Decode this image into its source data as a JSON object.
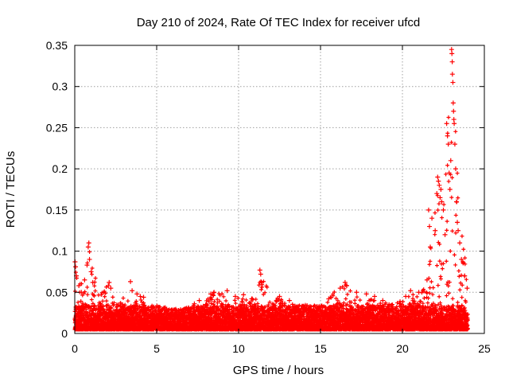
{
  "chart_data": {
    "type": "scatter",
    "title": "Day 210 of 2024, Rate Of TEC Index for receiver ufcd",
    "xlabel": "GPS time / hours",
    "ylabel": "ROTI / TECUs",
    "xlim": [
      0,
      25
    ],
    "ylim": [
      0,
      0.35
    ],
    "grid": true,
    "marker": "plus",
    "color": "#ff0000",
    "x_ticks": [
      0,
      5,
      10,
      15,
      20,
      25
    ],
    "x_tick_labels": [
      "0",
      "5",
      "10",
      "15",
      "20",
      "25"
    ],
    "y_ticks": [
      0,
      0.05,
      0.1,
      0.15,
      0.2,
      0.25,
      0.3,
      0.35
    ],
    "y_tick_labels": [
      "0",
      "0.05",
      "0.1",
      "0.15",
      "0.2",
      "0.25",
      "0.3",
      "0.35"
    ],
    "series": [
      {
        "name": "ROTI",
        "envelope_hours": [
          0,
          0.5,
          1,
          1.5,
          2,
          2.5,
          3,
          3.5,
          4,
          4.5,
          5,
          5.5,
          6,
          6.5,
          7,
          7.5,
          8,
          8.5,
          9,
          9.5,
          10,
          10.5,
          11,
          11.5,
          12,
          12.5,
          13,
          13.5,
          14,
          14.5,
          15,
          15.5,
          16,
          16.5,
          17,
          17.5,
          18,
          18.5,
          19,
          19.5,
          20,
          20.5,
          21,
          21.5,
          22,
          22.5,
          23,
          23.5,
          24
        ],
        "envelope_roti": [
          0.085,
          0.06,
          0.11,
          0.05,
          0.058,
          0.04,
          0.048,
          0.035,
          0.045,
          0.033,
          0.03,
          0.028,
          0.026,
          0.026,
          0.028,
          0.035,
          0.04,
          0.05,
          0.052,
          0.04,
          0.05,
          0.042,
          0.045,
          0.077,
          0.038,
          0.045,
          0.038,
          0.036,
          0.035,
          0.035,
          0.033,
          0.042,
          0.055,
          0.062,
          0.05,
          0.048,
          0.045,
          0.04,
          0.038,
          0.035,
          0.042,
          0.05,
          0.048,
          0.06,
          0.18,
          0.19,
          0.345,
          0.16,
          0.055
        ],
        "baseline_roti": 0.012,
        "points": [
          [
            0.02,
            0.087
          ],
          [
            0.05,
            0.081
          ],
          [
            0.1,
            0.07
          ],
          [
            0.25,
            0.058
          ],
          [
            0.4,
            0.05
          ],
          [
            0.6,
            0.065
          ],
          [
            0.75,
            0.083
          ],
          [
            0.82,
            0.105
          ],
          [
            0.86,
            0.11
          ],
          [
            0.9,
            0.09
          ],
          [
            1.0,
            0.075
          ],
          [
            1.1,
            0.062
          ],
          [
            2.05,
            0.058
          ],
          [
            2.1,
            0.062
          ],
          [
            2.2,
            0.055
          ],
          [
            3.4,
            0.063
          ],
          [
            3.5,
            0.052
          ],
          [
            3.8,
            0.048
          ],
          [
            4.0,
            0.045
          ],
          [
            4.2,
            0.044
          ],
          [
            7.3,
            0.036
          ],
          [
            7.6,
            0.04
          ],
          [
            8.3,
            0.048
          ],
          [
            8.5,
            0.05
          ],
          [
            9.3,
            0.052
          ],
          [
            9.8,
            0.045
          ],
          [
            10.3,
            0.047
          ],
          [
            10.8,
            0.042
          ],
          [
            11.3,
            0.077
          ],
          [
            11.35,
            0.072
          ],
          [
            11.4,
            0.062
          ],
          [
            12.5,
            0.045
          ],
          [
            13.1,
            0.04
          ],
          [
            15.5,
            0.042
          ],
          [
            16.2,
            0.055
          ],
          [
            16.5,
            0.062
          ],
          [
            16.6,
            0.058
          ],
          [
            17.2,
            0.05
          ],
          [
            17.8,
            0.048
          ],
          [
            18.3,
            0.045
          ],
          [
            18.8,
            0.04
          ],
          [
            20.2,
            0.045
          ],
          [
            20.5,
            0.052
          ],
          [
            21.0,
            0.05
          ],
          [
            21.5,
            0.065
          ],
          [
            21.6,
            0.15
          ],
          [
            21.65,
            0.13
          ],
          [
            21.7,
            0.105
          ],
          [
            21.8,
            0.14
          ],
          [
            22.0,
            0.125
          ],
          [
            22.1,
            0.17
          ],
          [
            22.15,
            0.19
          ],
          [
            22.2,
            0.185
          ],
          [
            22.25,
            0.18
          ],
          [
            22.3,
            0.165
          ],
          [
            22.35,
            0.175
          ],
          [
            22.4,
            0.16
          ],
          [
            22.5,
            0.15
          ],
          [
            22.6,
            0.12
          ],
          [
            22.7,
            0.255
          ],
          [
            22.75,
            0.24
          ],
          [
            22.8,
            0.23
          ],
          [
            22.85,
            0.195
          ],
          [
            22.9,
            0.175
          ],
          [
            22.95,
            0.21
          ],
          [
            23.0,
            0.345
          ],
          [
            23.02,
            0.34
          ],
          [
            23.04,
            0.33
          ],
          [
            23.05,
            0.315
          ],
          [
            23.08,
            0.305
          ],
          [
            23.1,
            0.28
          ],
          [
            23.12,
            0.27
          ],
          [
            23.14,
            0.26
          ],
          [
            23.16,
            0.255
          ],
          [
            23.2,
            0.23
          ],
          [
            23.25,
            0.2
          ],
          [
            23.3,
            0.16
          ],
          [
            23.35,
            0.135
          ],
          [
            23.4,
            0.125
          ],
          [
            23.5,
            0.11
          ],
          [
            23.6,
            0.09
          ],
          [
            23.8,
            0.07
          ],
          [
            23.95,
            0.055
          ]
        ]
      }
    ]
  }
}
